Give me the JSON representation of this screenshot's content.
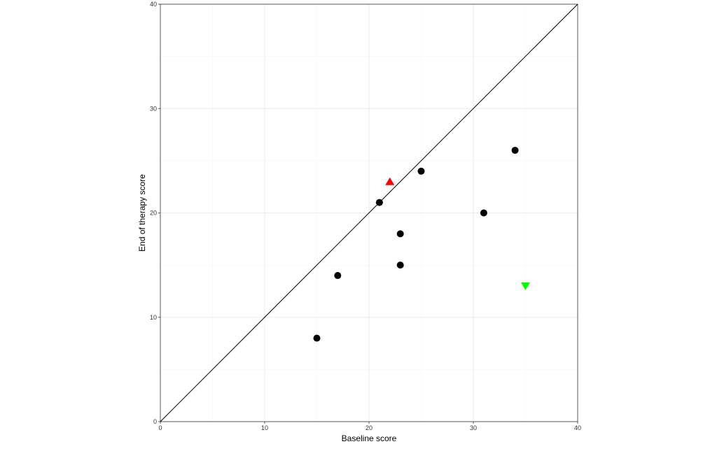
{
  "chart_data": {
    "type": "scatter",
    "title": "",
    "xlabel": "Baseline score",
    "ylabel": "End of therapy score",
    "xlim": [
      0,
      40
    ],
    "ylim": [
      0,
      40
    ],
    "x_ticks": [
      0,
      10,
      20,
      30,
      40
    ],
    "y_ticks": [
      0,
      10,
      20,
      30,
      40
    ],
    "grid": true,
    "reference_line": {
      "type": "identity",
      "from": [
        0,
        0
      ],
      "to": [
        40,
        40
      ],
      "color": "#000000"
    },
    "series": [
      {
        "marker": "circle",
        "color": "#000000",
        "points": [
          {
            "x": 15,
            "y": 8
          },
          {
            "x": 17,
            "y": 14
          },
          {
            "x": 21,
            "y": 21
          },
          {
            "x": 23,
            "y": 18
          },
          {
            "x": 23,
            "y": 15
          },
          {
            "x": 25,
            "y": 24
          },
          {
            "x": 31,
            "y": 20
          },
          {
            "x": 34,
            "y": 26
          }
        ]
      },
      {
        "marker": "triangle-up",
        "color": "#ff0000",
        "points": [
          {
            "x": 22,
            "y": 23
          }
        ]
      },
      {
        "marker": "triangle-down",
        "color": "#00ff00",
        "points": [
          {
            "x": 35,
            "y": 13
          }
        ]
      }
    ]
  }
}
